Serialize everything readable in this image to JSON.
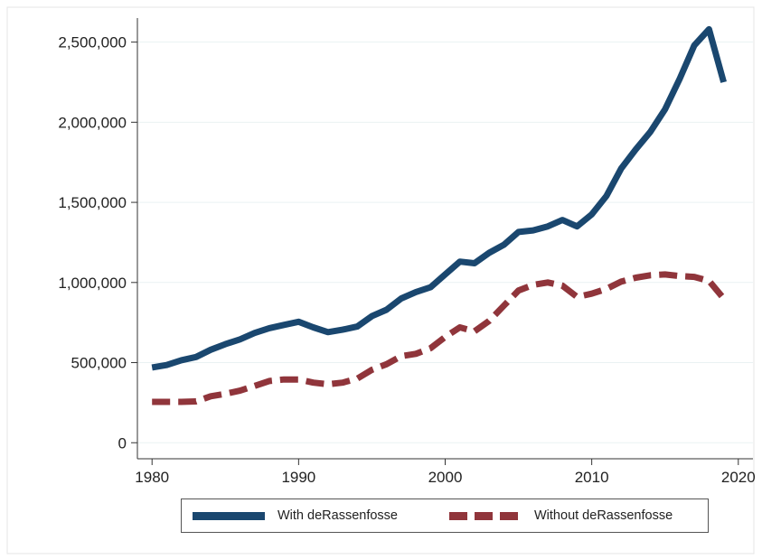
{
  "chart_data": {
    "type": "line",
    "title": "",
    "xlabel": "",
    "ylabel": "",
    "xlim": [
      1979,
      2021
    ],
    "ylim": [
      -100000,
      2650000
    ],
    "x_ticks": [
      1980,
      1990,
      2000,
      2010,
      2020
    ],
    "x_tick_labels": [
      "1980",
      "1990",
      "2000",
      "2010",
      "2020"
    ],
    "y_ticks": [
      0,
      500000,
      1000000,
      1500000,
      2000000,
      2500000
    ],
    "y_tick_labels": [
      "0",
      "500,000",
      "1,000,000",
      "1,500,000",
      "2,000,000",
      "2,500,000"
    ],
    "grid": "horizontal",
    "legend_position": "bottom",
    "x": [
      1980,
      1981,
      1982,
      1983,
      1984,
      1985,
      1986,
      1987,
      1988,
      1989,
      1990,
      1991,
      1992,
      1993,
      1994,
      1995,
      1996,
      1997,
      1998,
      1999,
      2000,
      2001,
      2002,
      2003,
      2004,
      2005,
      2006,
      2007,
      2008,
      2009,
      2010,
      2011,
      2012,
      2013,
      2014,
      2015,
      2016,
      2017,
      2018,
      2019
    ],
    "series": [
      {
        "name": "With deRassenfosse",
        "color": "#1a476f",
        "style": "solid",
        "values": [
          470000,
          485000,
          515000,
          535000,
          580000,
          615000,
          645000,
          685000,
          715000,
          735000,
          755000,
          720000,
          690000,
          705000,
          725000,
          790000,
          830000,
          900000,
          940000,
          970000,
          1050000,
          1130000,
          1120000,
          1185000,
          1235000,
          1315000,
          1325000,
          1350000,
          1390000,
          1350000,
          1425000,
          1540000,
          1710000,
          1830000,
          1940000,
          2080000,
          2270000,
          2480000,
          2580000,
          2250000
        ]
      },
      {
        "name": "Without deRassenfosse",
        "color": "#90353b",
        "style": "dash",
        "values": [
          255000,
          255000,
          255000,
          258000,
          290000,
          305000,
          325000,
          355000,
          385000,
          395000,
          395000,
          375000,
          365000,
          375000,
          400000,
          455000,
          490000,
          540000,
          555000,
          590000,
          660000,
          720000,
          695000,
          760000,
          855000,
          950000,
          985000,
          1000000,
          980000,
          910000,
          930000,
          960000,
          1005000,
          1030000,
          1045000,
          1050000,
          1040000,
          1035000,
          1010000,
          900000
        ]
      }
    ]
  }
}
